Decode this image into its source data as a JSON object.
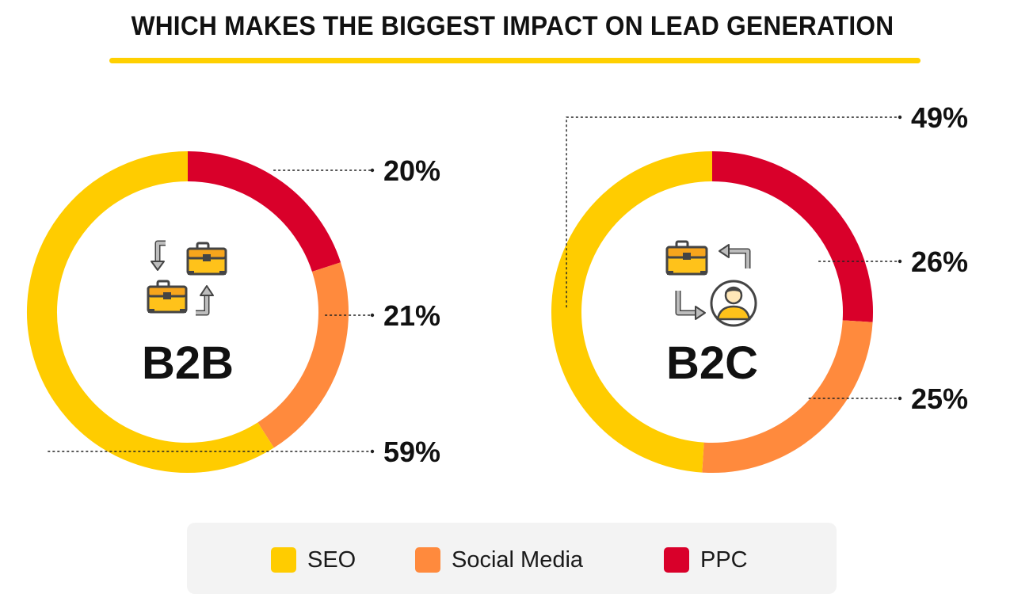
{
  "title": "WHICH MAKES THE BIGGEST IMPACT ON LEAD GENERATION",
  "colors": {
    "seo": "#FFCC00",
    "social_media": "#FF8A3D",
    "ppc": "#D9002A",
    "accent_underline": "#FFD000"
  },
  "legend": [
    {
      "label": "SEO",
      "color": "#FFCC00"
    },
    {
      "label": "Social Media",
      "color": "#FF8A3D"
    },
    {
      "label": "PPC",
      "color": "#D9002A"
    }
  ],
  "chart_data": [
    {
      "type": "pie",
      "variant": "donut",
      "center_label": "B2B",
      "icon": "briefcase-exchange-icon",
      "slices": [
        {
          "name": "PPC",
          "value": 20,
          "label": "20%",
          "color": "#D9002A"
        },
        {
          "name": "Social Media",
          "value": 21,
          "label": "21%",
          "color": "#FF8A3D"
        },
        {
          "name": "SEO",
          "value": 59,
          "label": "59%",
          "color": "#FFCC00"
        }
      ]
    },
    {
      "type": "pie",
      "variant": "donut",
      "center_label": "B2C",
      "icon": "briefcase-to-customer-icon",
      "slices": [
        {
          "name": "PPC",
          "value": 26,
          "label": "26%",
          "color": "#D9002A"
        },
        {
          "name": "Social Media",
          "value": 25,
          "label": "25%",
          "color": "#FF8A3D"
        },
        {
          "name": "SEO",
          "value": 49,
          "label": "49%",
          "color": "#FFCC00"
        }
      ]
    }
  ]
}
